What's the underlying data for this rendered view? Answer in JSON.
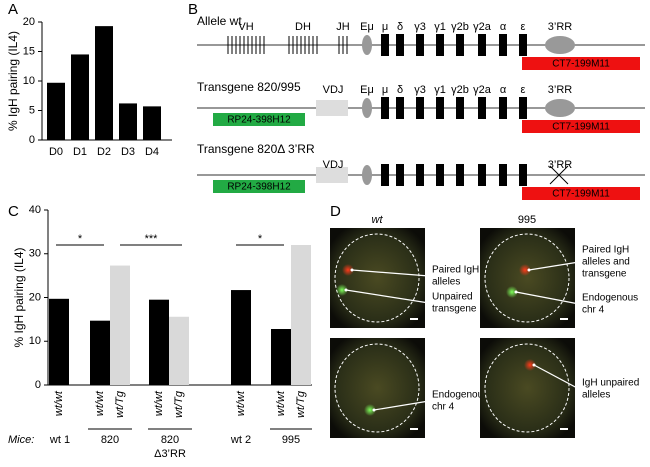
{
  "panels": [
    "A",
    "B",
    "C",
    "D"
  ],
  "chart_data": [
    {
      "type": "bar",
      "ylabel": "% IgH pairing (IL4)",
      "categories": [
        "D0",
        "D1",
        "D2",
        "D3",
        "D4"
      ],
      "values": [
        9.7,
        14.5,
        19.3,
        6.2,
        5.7
      ],
      "colors": [
        "#000000",
        "#000000",
        "#000000",
        "#000000",
        "#000000"
      ],
      "ylim": [
        0,
        20
      ],
      "yticks": [
        0,
        5,
        10,
        15,
        20
      ]
    },
    {
      "type": "bar",
      "ylabel": "% IgH pairing (IL4)",
      "categories": [
        "wt/wt",
        "wt/wt",
        "wt/Tg",
        "wt/wt",
        "wt/Tg",
        "wt/wt",
        "wt/wt",
        "wt/Tg"
      ],
      "values": [
        19.7,
        14.7,
        27.3,
        19.5,
        15.6,
        21.7,
        12.8,
        32
      ],
      "colors": [
        "#000000",
        "#000000",
        "#d9d9d9",
        "#000000",
        "#d9d9d9",
        "#000000",
        "#000000",
        "#d9d9d9"
      ],
      "ylim": [
        0,
        40
      ],
      "yticks": [
        0,
        10,
        20,
        30,
        40
      ],
      "annotations": [
        "*",
        "***",
        "*"
      ],
      "mice_label": "Mice:",
      "group_labels": [
        "wt 1",
        "820",
        "820",
        "Δ3’RR",
        "wt 2",
        "995"
      ]
    }
  ],
  "diagram": {
    "rows": [
      {
        "label": "Allele wt",
        "segments": [
          "VH",
          "DH",
          "JH",
          "Eμ",
          "μ",
          "δ",
          "γ3",
          "γ1",
          "γ2b",
          "γ2a",
          "α",
          "ε",
          "3’RR"
        ],
        "probes": [
          "CT7-199M11"
        ]
      },
      {
        "label": "Transgene 820/995",
        "segments": [
          "VDJ",
          "Eμ",
          "μ",
          "δ",
          "γ3",
          "γ1",
          "γ2b",
          "γ2a",
          "α",
          "ε",
          "3’RR"
        ],
        "probes": [
          "RP24-398H12",
          "CT7-199M11"
        ]
      },
      {
        "label": "Transgene 820Δ 3’RR",
        "segments": [
          "VDJ",
          "3’RR"
        ],
        "probes": [
          "RP24-398H12",
          "CT7-199M11"
        ]
      }
    ]
  },
  "images": [
    {
      "title": "wt",
      "labels": [
        [
          "Paired IgH",
          "alleles"
        ],
        [
          "Unpaired",
          "transgene"
        ]
      ]
    },
    {
      "title": "995",
      "labels": [
        [
          "Paired IgH",
          "alleles and",
          "transgene"
        ],
        [
          "Endogenous",
          "chr 4"
        ]
      ]
    },
    {
      "labels": [
        [
          "Endogenous",
          "chr 4"
        ]
      ]
    },
    {
      "labels": [
        [
          "IgH unpaired",
          "alleles"
        ]
      ]
    }
  ]
}
